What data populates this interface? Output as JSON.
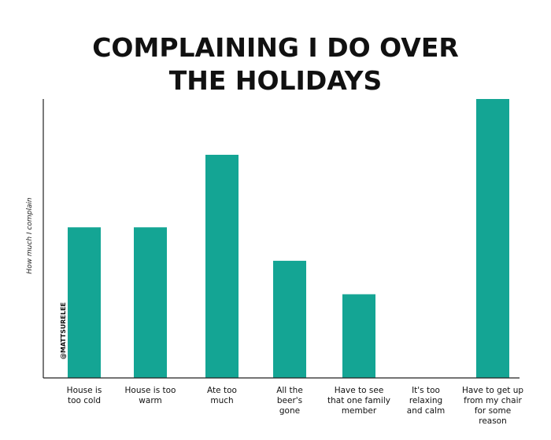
{
  "chart_data": {
    "type": "bar",
    "title_lines": [
      "COMPLAINING I DO OVER",
      "THE HOLIDAYS"
    ],
    "ylabel": "How much I complain",
    "watermark": "@MATTSURELEE",
    "categories": [
      "House is\ntoo cold",
      "House is too\nwarm",
      "Ate too\nmuch",
      "All the\nbeer's\ngone",
      "Have to see\nthat one family\nmember",
      "It's too\nrelaxing\nand calm",
      "Have to get up\nfrom my chair\nfor some\nreason"
    ],
    "values": [
      54,
      54,
      80,
      42,
      30,
      0,
      100
    ],
    "ylim": [
      0,
      100
    ],
    "bar_color": "#14a594",
    "grid": false,
    "legend": "none"
  }
}
